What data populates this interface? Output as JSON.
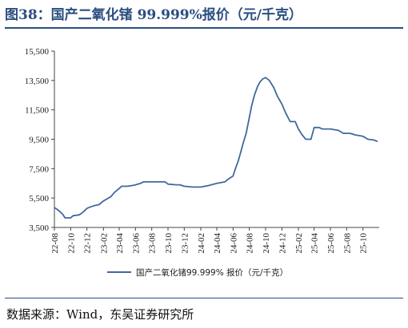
{
  "header": {
    "title": "图38：国产二氧化锗 99.999%报价（元/千克）"
  },
  "footer": {
    "source": "数据来源：Wind，东吴证券研究所"
  },
  "colors": {
    "title": "#2b4e80",
    "line": "#41689e",
    "axis": "#444444"
  },
  "chart_data": {
    "type": "line",
    "title": "",
    "xlabel": "",
    "ylabel": "",
    "ylim": [
      3500,
      15500
    ],
    "yticks": [
      3500,
      5500,
      7500,
      9500,
      11500,
      13500,
      15500
    ],
    "ytick_labels": [
      "3,500",
      "5,500",
      "7,500",
      "9,500",
      "11,500",
      "13,500",
      "15,500"
    ],
    "xlim": [
      "2022-08",
      "2025-12"
    ],
    "xtick_labels": [
      "22-08",
      "22-10",
      "22-12",
      "23-02",
      "23-04",
      "23-06",
      "23-08",
      "23-10",
      "23-12",
      "24-02",
      "24-04",
      "24-06",
      "24-08",
      "24-10",
      "24-12",
      "25-02",
      "25-04",
      "25-06",
      "25-08",
      "25-10"
    ],
    "grid": false,
    "legend": "bottom",
    "series": [
      {
        "name": "国产二氧化锗99.999% 报价（元/千克）",
        "points": [
          [
            "2022-08-01",
            4850
          ],
          [
            "2022-08-10",
            4750
          ],
          [
            "2022-08-20",
            4600
          ],
          [
            "2022-09-01",
            4400
          ],
          [
            "2022-09-10",
            4150
          ],
          [
            "2022-10-01",
            4150
          ],
          [
            "2022-10-10",
            4300
          ],
          [
            "2022-11-01",
            4350
          ],
          [
            "2022-11-10",
            4450
          ],
          [
            "2022-11-20",
            4600
          ],
          [
            "2022-12-01",
            4800
          ],
          [
            "2022-12-15",
            4900
          ],
          [
            "2023-01-01",
            5000
          ],
          [
            "2023-01-15",
            5050
          ],
          [
            "2023-02-01",
            5300
          ],
          [
            "2023-02-15",
            5450
          ],
          [
            "2023-03-01",
            5600
          ],
          [
            "2023-03-15",
            5900
          ],
          [
            "2023-04-01",
            6150
          ],
          [
            "2023-04-10",
            6300
          ],
          [
            "2023-05-01",
            6300
          ],
          [
            "2023-05-20",
            6350
          ],
          [
            "2023-06-01",
            6400
          ],
          [
            "2023-06-20",
            6500
          ],
          [
            "2023-07-01",
            6600
          ],
          [
            "2023-08-01",
            6600
          ],
          [
            "2023-09-01",
            6600
          ],
          [
            "2023-09-20",
            6600
          ],
          [
            "2023-10-01",
            6450
          ],
          [
            "2023-11-01",
            6400
          ],
          [
            "2023-11-15",
            6400
          ],
          [
            "2023-12-01",
            6300
          ],
          [
            "2024-01-01",
            6250
          ],
          [
            "2024-02-01",
            6250
          ],
          [
            "2024-03-01",
            6350
          ],
          [
            "2024-04-01",
            6500
          ],
          [
            "2024-05-01",
            6600
          ],
          [
            "2024-05-15",
            6800
          ],
          [
            "2024-06-01",
            7000
          ],
          [
            "2024-06-10",
            7500
          ],
          [
            "2024-06-20",
            8000
          ],
          [
            "2024-07-01",
            8700
          ],
          [
            "2024-07-10",
            9300
          ],
          [
            "2024-07-20",
            9900
          ],
          [
            "2024-08-01",
            11000
          ],
          [
            "2024-08-10",
            11800
          ],
          [
            "2024-08-20",
            12500
          ],
          [
            "2024-09-01",
            13100
          ],
          [
            "2024-09-10",
            13400
          ],
          [
            "2024-09-20",
            13600
          ],
          [
            "2024-10-01",
            13700
          ],
          [
            "2024-10-15",
            13500
          ],
          [
            "2024-11-01",
            13000
          ],
          [
            "2024-11-15",
            12400
          ],
          [
            "2024-12-01",
            11900
          ],
          [
            "2024-12-15",
            11300
          ],
          [
            "2025-01-01",
            10700
          ],
          [
            "2025-01-20",
            10700
          ],
          [
            "2025-02-01",
            10200
          ],
          [
            "2025-02-15",
            9800
          ],
          [
            "2025-03-01",
            9500
          ],
          [
            "2025-03-20",
            9500
          ],
          [
            "2025-04-01",
            10300
          ],
          [
            "2025-04-20",
            10300
          ],
          [
            "2025-05-01",
            10200
          ],
          [
            "2025-06-01",
            10200
          ],
          [
            "2025-07-01",
            10100
          ],
          [
            "2025-07-20",
            9900
          ],
          [
            "2025-08-15",
            9900
          ],
          [
            "2025-09-01",
            9800
          ],
          [
            "2025-10-01",
            9700
          ],
          [
            "2025-10-20",
            9500
          ],
          [
            "2025-11-10",
            9450
          ],
          [
            "2025-11-25",
            9350
          ]
        ]
      }
    ]
  }
}
